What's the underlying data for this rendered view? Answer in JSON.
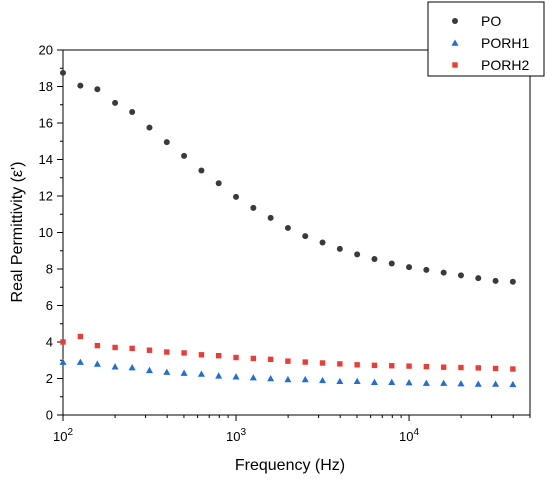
{
  "chart_data": {
    "type": "scatter",
    "title": "",
    "xlabel": "Frequency (Hz)",
    "ylabel": "Real Permittivity (ε')",
    "x_scale": "log",
    "xlim": [
      100,
      50000
    ],
    "ylim": [
      0,
      20
    ],
    "x_ticks": [
      {
        "value": 100,
        "base": "10",
        "exp": "2"
      },
      {
        "value": 1000,
        "base": "10",
        "exp": "3"
      },
      {
        "value": 10000,
        "base": "10",
        "exp": "4"
      }
    ],
    "y_ticks": [
      0,
      2,
      4,
      6,
      8,
      10,
      12,
      14,
      16,
      18,
      20
    ],
    "legend_position": "top-right",
    "grid": false,
    "x": [
      100,
      126,
      158,
      200,
      251,
      316,
      398,
      501,
      631,
      794,
      1000,
      1259,
      1585,
      1995,
      2512,
      3162,
      3981,
      5012,
      6310,
      7943,
      10000,
      12589,
      15849,
      19953,
      25119,
      31623,
      39811
    ],
    "series": [
      {
        "name": "PO",
        "marker": "circle",
        "color": "#3a3a3a",
        "values": [
          18.75,
          18.05,
          17.85,
          17.1,
          16.6,
          15.75,
          14.95,
          14.2,
          13.4,
          12.7,
          11.95,
          11.35,
          10.8,
          10.25,
          9.8,
          9.45,
          9.1,
          8.8,
          8.55,
          8.3,
          8.1,
          7.95,
          7.8,
          7.65,
          7.5,
          7.35,
          7.3
        ]
      },
      {
        "name": "PORH1",
        "marker": "triangle",
        "color": "#1f6fd6",
        "values": [
          2.9,
          2.9,
          2.8,
          2.65,
          2.6,
          2.45,
          2.35,
          2.3,
          2.25,
          2.15,
          2.1,
          2.05,
          2.0,
          1.95,
          1.95,
          1.9,
          1.85,
          1.85,
          1.8,
          1.8,
          1.78,
          1.75,
          1.75,
          1.72,
          1.7,
          1.7,
          1.68
        ]
      },
      {
        "name": "PORH2",
        "marker": "square",
        "color": "#ef3b36",
        "values": [
          4.0,
          4.3,
          3.8,
          3.7,
          3.65,
          3.55,
          3.45,
          3.4,
          3.3,
          3.25,
          3.15,
          3.1,
          3.05,
          2.95,
          2.9,
          2.85,
          2.8,
          2.75,
          2.72,
          2.7,
          2.68,
          2.65,
          2.62,
          2.6,
          2.58,
          2.55,
          2.52
        ]
      }
    ]
  }
}
